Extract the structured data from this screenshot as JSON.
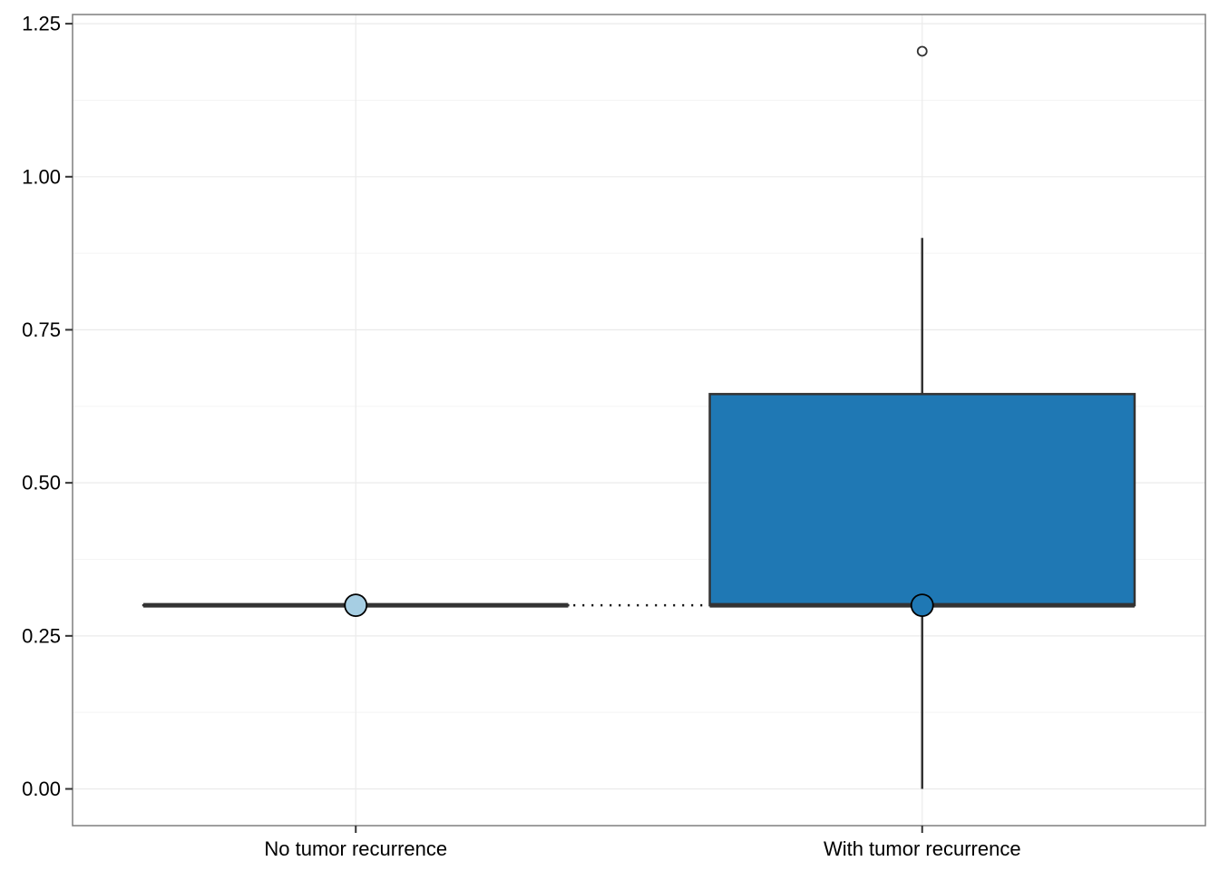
{
  "chart_data": {
    "type": "box",
    "categories": [
      "No tumor recurrence",
      "With tumor recurrence"
    ],
    "boxes": [
      {
        "category": "No tumor recurrence",
        "fill": "#a6cee3",
        "whisker_low": 0.3,
        "q1": 0.3,
        "median": 0.3,
        "q3": 0.3,
        "whisker_high": 0.3,
        "mean": 0.3,
        "outliers": []
      },
      {
        "category": "With tumor recurrence",
        "fill": "#1f78b4",
        "whisker_low": 0.0,
        "q1": 0.3,
        "median": 0.3,
        "q3": 0.645,
        "whisker_high": 0.9,
        "mean": 0.3,
        "outliers": [
          1.205
        ]
      }
    ],
    "mean_connector": "dotted",
    "title": "",
    "xlabel": "",
    "ylabel": "",
    "ylim": [
      -0.06,
      1.265
    ],
    "yticks": [
      "0.00",
      "0.25",
      "0.50",
      "0.75",
      "1.00",
      "1.25"
    ],
    "ytick_values": [
      0.0,
      0.25,
      0.5,
      0.75,
      1.0,
      1.25
    ],
    "grid": true,
    "colors": {
      "box_outline": "#333333",
      "grid": "#ebebeb",
      "panel_border": "#7f7f7f"
    }
  }
}
